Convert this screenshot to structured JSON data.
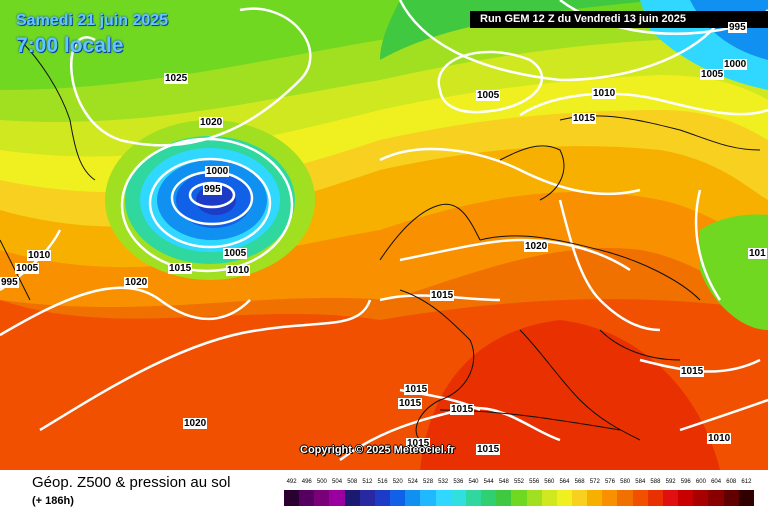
{
  "header": {
    "date": "Samedi 21 juin 2025",
    "time": "7:00 locale",
    "run": "Run GEM 12 Z du Vendredi 13 juin 2025"
  },
  "copyright": "Copyright © 2025 Meteociel.fr",
  "legend": {
    "title": "Géop. Z500 & pression au sol",
    "subtitle": "(+ 186h)",
    "levels": [
      "492",
      "496",
      "500",
      "504",
      "508",
      "512",
      "516",
      "520",
      "524",
      "528",
      "532",
      "536",
      "540",
      "544",
      "548",
      "552",
      "556",
      "560",
      "564",
      "568",
      "572",
      "576",
      "580",
      "584",
      "588",
      "592",
      "596",
      "600",
      "604",
      "608",
      "612"
    ],
    "colors": [
      "#2a0030",
      "#550060",
      "#7a007a",
      "#9a00a0",
      "#1a1a70",
      "#2828a0",
      "#1c3cc8",
      "#1060e8",
      "#1090f0",
      "#20b8ff",
      "#30d8ff",
      "#30e0e0",
      "#30d8a0",
      "#30d070",
      "#40c840",
      "#70d820",
      "#a0e020",
      "#d0e820",
      "#f0f020",
      "#f8d020",
      "#f8b000",
      "#f89000",
      "#f07000",
      "#f05000",
      "#e83000",
      "#e01010",
      "#c80000",
      "#a80000",
      "#880000",
      "#600000",
      "#300000"
    ]
  },
  "pressure_labels": [
    {
      "text": "1025"
    },
    {
      "text": "1020"
    },
    {
      "text": "1000"
    },
    {
      "text": "995"
    },
    {
      "text": "1005"
    },
    {
      "text": "1015"
    },
    {
      "text": "1010"
    },
    {
      "text": "1020"
    },
    {
      "text": "1010"
    },
    {
      "text": "1005"
    },
    {
      "text": "995"
    },
    {
      "text": "1005"
    },
    {
      "text": "1010"
    },
    {
      "text": "1015"
    },
    {
      "text": "1000"
    },
    {
      "text": "1005"
    },
    {
      "text": "995"
    },
    {
      "text": "1020"
    },
    {
      "text": "1015"
    },
    {
      "text": "1015"
    },
    {
      "text": "1015"
    },
    {
      "text": "1015"
    },
    {
      "text": "1015"
    },
    {
      "text": "1015"
    },
    {
      "text": "1020"
    },
    {
      "text": "1015"
    },
    {
      "text": "1010"
    },
    {
      "text": "101"
    }
  ]
}
